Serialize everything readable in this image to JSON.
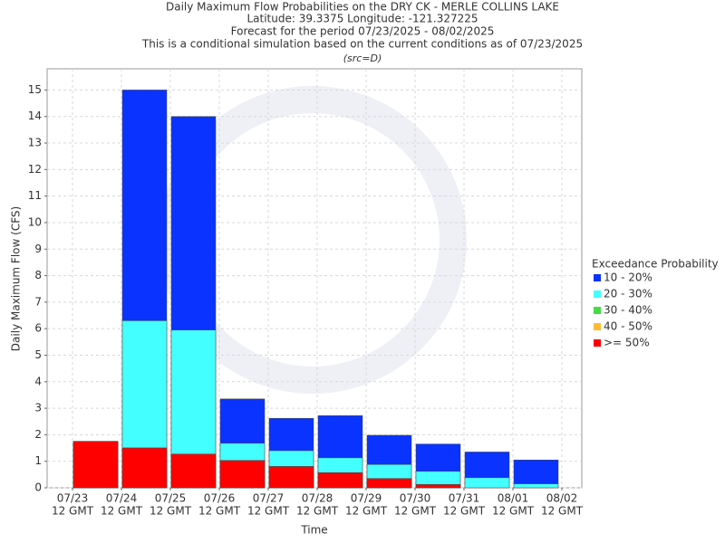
{
  "chart_data": {
    "type": "overlap-bar",
    "title": "Daily Maximum Flow Probabilities on the DRY CK - MERLE COLLINS LAKE",
    "subtitle_lines": [
      "Latitude: 39.3375 Longitude: -121.327225",
      "Forecast for the period 07/23/2025 - 08/02/2025",
      "This is a conditional simulation based on the current conditions as of 07/23/2025",
      "(src=D)"
    ],
    "y_label": "Daily Maximum Flow (CFS)",
    "x_label": "Time",
    "x_ticks": [
      {
        "date": "07/23",
        "time": "12 GMT"
      },
      {
        "date": "07/24",
        "time": "12 GMT"
      },
      {
        "date": "07/25",
        "time": "12 GMT"
      },
      {
        "date": "07/26",
        "time": "12 GMT"
      },
      {
        "date": "07/27",
        "time": "12 GMT"
      },
      {
        "date": "07/28",
        "time": "12 GMT"
      },
      {
        "date": "07/29",
        "time": "12 GMT"
      },
      {
        "date": "07/30",
        "time": "12 GMT"
      },
      {
        "date": "07/31",
        "time": "12 GMT"
      },
      {
        "date": "08/01",
        "time": "12 GMT"
      },
      {
        "date": "08/02",
        "time": "12 GMT"
      }
    ],
    "legend_title": "Exceedance Probability",
    "series": [
      {
        "name": "10 - 20%",
        "color": "#0a33ff",
        "values": [
          1.75,
          15,
          14,
          3.35,
          2.62,
          2.72,
          1.98,
          1.65,
          1.35,
          1.05
        ]
      },
      {
        "name": "20 - 30%",
        "color": "#44ffff",
        "values": [
          1.75,
          6.3,
          5.95,
          1.68,
          1.4,
          1.13,
          0.88,
          0.62,
          0.38,
          0.15
        ]
      },
      {
        "name": "30 - 40%",
        "color": "#44dd44",
        "values": [
          1.75,
          1.5,
          1.27,
          1.03,
          0.8,
          0.57,
          0.35,
          0.12,
          0,
          0
        ]
      },
      {
        "name": "40 - 50%",
        "color": "#ffbb33",
        "values": [
          1.75,
          1.5,
          1.27,
          1.03,
          0.8,
          0.57,
          0.35,
          0.12,
          0,
          0
        ]
      },
      {
        "name": ">= 50%",
        "color": "#ff0000",
        "values": [
          1.75,
          1.5,
          1.27,
          1.03,
          0.8,
          0.57,
          0.35,
          0.12,
          0,
          0
        ]
      }
    ],
    "ylim": [
      0,
      15.8
    ],
    "yticks": [
      0,
      1,
      2,
      3,
      4,
      5,
      6,
      7,
      8,
      9,
      10,
      11,
      12,
      13,
      14,
      15
    ],
    "grid": true
  }
}
